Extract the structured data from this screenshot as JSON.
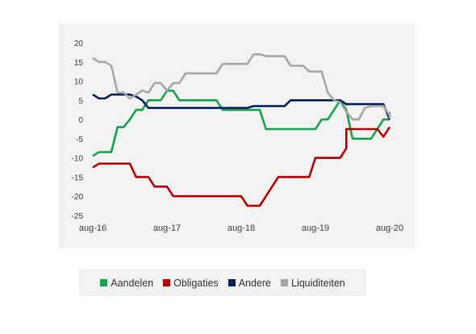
{
  "chart_data": {
    "type": "line",
    "title": "",
    "xlabel": "",
    "ylabel": "",
    "ylim": [
      -25,
      20
    ],
    "yticks": [
      20,
      15,
      10,
      5,
      0,
      -5,
      -10,
      -15,
      -20,
      -25
    ],
    "xtick_labels": [
      "aug-16",
      "aug-17",
      "aug-18",
      "aug-19",
      "aug-20"
    ],
    "x_start": "2016-08",
    "x_end": "2020-08",
    "grid": false,
    "legend_position": "bottom",
    "series": [
      {
        "name": "Aandelen",
        "color": "#13a54a",
        "points": [
          [
            "2016-08",
            -9.5
          ],
          [
            "2016-09",
            -8.5
          ],
          [
            "2016-10",
            -8.5
          ],
          [
            "2016-11",
            -8.5
          ],
          [
            "2016-12",
            -2
          ],
          [
            "2017-01",
            -2
          ],
          [
            "2017-02",
            0
          ],
          [
            "2017-03",
            2.5
          ],
          [
            "2017-04",
            2.5
          ],
          [
            "2017-05",
            5
          ],
          [
            "2017-06",
            5
          ],
          [
            "2017-07",
            5
          ],
          [
            "2017-08",
            7.5
          ],
          [
            "2017-09",
            7.5
          ],
          [
            "2017-10",
            5
          ],
          [
            "2017-11",
            5
          ],
          [
            "2017-12",
            5
          ],
          [
            "2018-01",
            5
          ],
          [
            "2018-02",
            5
          ],
          [
            "2018-03",
            5
          ],
          [
            "2018-04",
            5
          ],
          [
            "2018-05",
            2.5
          ],
          [
            "2018-06",
            2.5
          ],
          [
            "2018-07",
            2.5
          ],
          [
            "2018-08",
            2.5
          ],
          [
            "2018-09",
            2.5
          ],
          [
            "2018-10",
            2.5
          ],
          [
            "2018-11",
            2.5
          ],
          [
            "2018-12",
            -2.5
          ],
          [
            "2019-01",
            -2.5
          ],
          [
            "2019-02",
            -2.5
          ],
          [
            "2019-03",
            -2.5
          ],
          [
            "2019-04",
            -2.5
          ],
          [
            "2019-05",
            -2.5
          ],
          [
            "2019-06",
            -2.5
          ],
          [
            "2019-07",
            -2.5
          ],
          [
            "2019-08",
            -2.5
          ],
          [
            "2019-09",
            0
          ],
          [
            "2019-10",
            0
          ],
          [
            "2019-11",
            2.5
          ],
          [
            "2019-12",
            5
          ],
          [
            "2020-01",
            2.5
          ],
          [
            "2020-02",
            -5
          ],
          [
            "2020-03",
            -5
          ],
          [
            "2020-04",
            -5
          ],
          [
            "2020-05",
            -5
          ],
          [
            "2020-06",
            -2.5
          ],
          [
            "2020-07",
            0
          ],
          [
            "2020-08",
            0
          ]
        ]
      },
      {
        "name": "Obligaties",
        "color": "#c00000",
        "points": [
          [
            "2016-08",
            -12.5
          ],
          [
            "2016-09",
            -11.5
          ],
          [
            "2016-10",
            -11.5
          ],
          [
            "2016-11",
            -11.5
          ],
          [
            "2016-12",
            -11.5
          ],
          [
            "2017-01",
            -11.5
          ],
          [
            "2017-02",
            -11.5
          ],
          [
            "2017-03",
            -15
          ],
          [
            "2017-04",
            -15
          ],
          [
            "2017-05",
            -15
          ],
          [
            "2017-06",
            -17.5
          ],
          [
            "2017-07",
            -17.5
          ],
          [
            "2017-08",
            -17.5
          ],
          [
            "2017-09",
            -20
          ],
          [
            "2017-10",
            -20
          ],
          [
            "2017-11",
            -20
          ],
          [
            "2017-12",
            -20
          ],
          [
            "2018-01",
            -20
          ],
          [
            "2018-02",
            -20
          ],
          [
            "2018-03",
            -20
          ],
          [
            "2018-04",
            -20
          ],
          [
            "2018-05",
            -20
          ],
          [
            "2018-06",
            -20
          ],
          [
            "2018-07",
            -20
          ],
          [
            "2018-08",
            -20
          ],
          [
            "2018-09",
            -22.5
          ],
          [
            "2018-10",
            -22.5
          ],
          [
            "2018-11",
            -22.5
          ],
          [
            "2018-12",
            -20
          ],
          [
            "2019-01",
            -17.5
          ],
          [
            "2019-02",
            -15
          ],
          [
            "2019-03",
            -15
          ],
          [
            "2019-04",
            -15
          ],
          [
            "2019-05",
            -15
          ],
          [
            "2019-06",
            -15
          ],
          [
            "2019-07",
            -15
          ],
          [
            "2019-08",
            -10
          ],
          [
            "2019-09",
            -10
          ],
          [
            "2019-10",
            -10
          ],
          [
            "2019-11",
            -10
          ],
          [
            "2019-12",
            -10
          ],
          [
            "2020-01",
            -7.5
          ],
          [
            "2020-01",
            -2.5
          ],
          [
            "2020-02",
            -2.5
          ],
          [
            "2020-03",
            -2.5
          ],
          [
            "2020-04",
            -2.5
          ],
          [
            "2020-05",
            -2.5
          ],
          [
            "2020-06",
            -2.5
          ],
          [
            "2020-07",
            -4.5
          ],
          [
            "2020-08",
            -2
          ]
        ]
      },
      {
        "name": "Andere",
        "color": "#002060",
        "points": [
          [
            "2016-08",
            6.5
          ],
          [
            "2016-09",
            5.5
          ],
          [
            "2016-10",
            5.5
          ],
          [
            "2016-11",
            6.5
          ],
          [
            "2016-12",
            6.5
          ],
          [
            "2017-01",
            6.5
          ],
          [
            "2017-02",
            6.5
          ],
          [
            "2017-03",
            6
          ],
          [
            "2017-04",
            5
          ],
          [
            "2017-05",
            3
          ],
          [
            "2017-06",
            3
          ],
          [
            "2017-07",
            3
          ],
          [
            "2017-08",
            3
          ],
          [
            "2017-09",
            3
          ],
          [
            "2017-10",
            3
          ],
          [
            "2017-11",
            3
          ],
          [
            "2017-12",
            3
          ],
          [
            "2018-01",
            3
          ],
          [
            "2018-02",
            3
          ],
          [
            "2018-03",
            3
          ],
          [
            "2018-04",
            3
          ],
          [
            "2018-05",
            3
          ],
          [
            "2018-06",
            3
          ],
          [
            "2018-07",
            3
          ],
          [
            "2018-08",
            3
          ],
          [
            "2018-09",
            3
          ],
          [
            "2018-10",
            3.5
          ],
          [
            "2018-11",
            3.5
          ],
          [
            "2018-12",
            3.5
          ],
          [
            "2019-01",
            3.5
          ],
          [
            "2019-02",
            3.5
          ],
          [
            "2019-03",
            3.5
          ],
          [
            "2019-04",
            5
          ],
          [
            "2019-05",
            5
          ],
          [
            "2019-06",
            5
          ],
          [
            "2019-07",
            5
          ],
          [
            "2019-08",
            5
          ],
          [
            "2019-09",
            5
          ],
          [
            "2019-10",
            5
          ],
          [
            "2019-11",
            5
          ],
          [
            "2019-12",
            5
          ],
          [
            "2020-01",
            4
          ],
          [
            "2020-02",
            4
          ],
          [
            "2020-03",
            4
          ],
          [
            "2020-04",
            4
          ],
          [
            "2020-05",
            4
          ],
          [
            "2020-06",
            4
          ],
          [
            "2020-07",
            4
          ],
          [
            "2020-08",
            0
          ]
        ]
      },
      {
        "name": "Liquiditeiten",
        "color": "#a6a6a6",
        "points": [
          [
            "2016-08",
            16
          ],
          [
            "2016-09",
            15
          ],
          [
            "2016-10",
            15
          ],
          [
            "2016-11",
            14
          ],
          [
            "2016-12",
            7
          ],
          [
            "2017-01",
            7
          ],
          [
            "2017-02",
            5.5
          ],
          [
            "2017-03",
            6.5
          ],
          [
            "2017-04",
            7.5
          ],
          [
            "2017-05",
            7
          ],
          [
            "2017-06",
            9.5
          ],
          [
            "2017-07",
            9.5
          ],
          [
            "2017-08",
            7.5
          ],
          [
            "2017-09",
            9.5
          ],
          [
            "2017-10",
            9.5
          ],
          [
            "2017-11",
            12
          ],
          [
            "2017-12",
            12
          ],
          [
            "2018-01",
            12
          ],
          [
            "2018-02",
            12
          ],
          [
            "2018-03",
            12
          ],
          [
            "2018-04",
            12
          ],
          [
            "2018-05",
            14.5
          ],
          [
            "2018-06",
            14.5
          ],
          [
            "2018-07",
            14.5
          ],
          [
            "2018-08",
            14.5
          ],
          [
            "2018-09",
            14.5
          ],
          [
            "2018-10",
            17
          ],
          [
            "2018-11",
            17
          ],
          [
            "2018-12",
            16.5
          ],
          [
            "2019-01",
            16.5
          ],
          [
            "2019-02",
            16.5
          ],
          [
            "2019-03",
            16.5
          ],
          [
            "2019-04",
            14
          ],
          [
            "2019-05",
            14
          ],
          [
            "2019-06",
            14
          ],
          [
            "2019-07",
            12.5
          ],
          [
            "2019-08",
            12.5
          ],
          [
            "2019-09",
            12.5
          ],
          [
            "2019-10",
            7
          ],
          [
            "2019-11",
            5
          ],
          [
            "2019-12",
            4.5
          ],
          [
            "2020-01",
            2
          ],
          [
            "2020-02",
            0
          ],
          [
            "2020-03",
            0
          ],
          [
            "2020-04",
            3
          ],
          [
            "2020-05",
            3.5
          ],
          [
            "2020-06",
            3.5
          ],
          [
            "2020-07",
            3.5
          ],
          [
            "2020-08",
            1
          ],
          [
            "2020-08",
            0.5
          ],
          [
            "2020-08",
            2
          ]
        ]
      }
    ]
  }
}
